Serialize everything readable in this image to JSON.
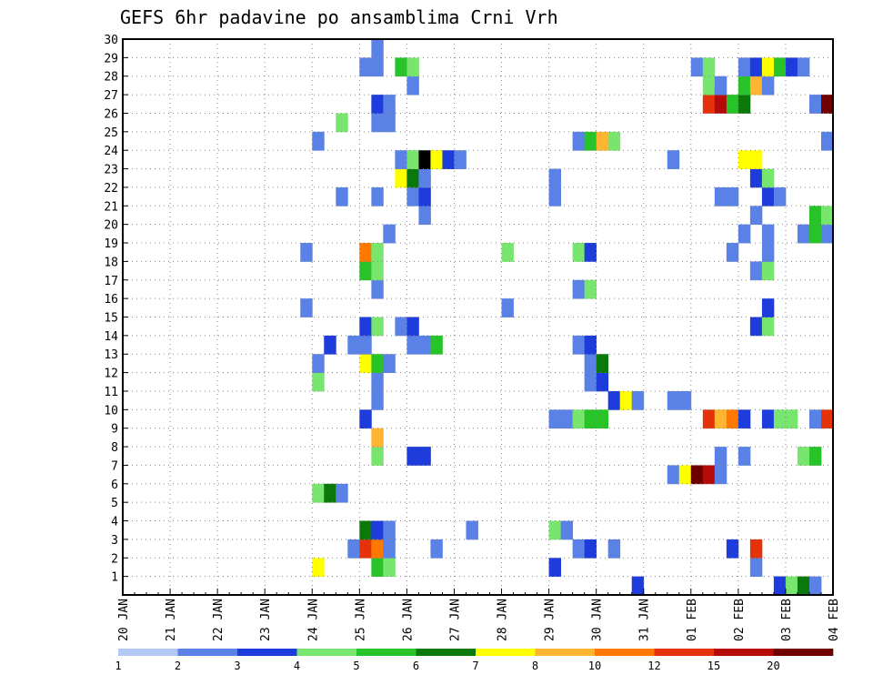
{
  "chart_data": {
    "type": "heatmap",
    "title": "GEFS 6hr padavine po ansamblima Crni Vrh",
    "xlabel": "",
    "ylabel": "",
    "x_tick_labels": [
      "20 JAN",
      "21 JAN",
      "22 JAN",
      "23 JAN",
      "24 JAN",
      "25 JAN",
      "26 JAN",
      "27 JAN",
      "28 JAN",
      "29 JAN",
      "30 JAN",
      "31 JAN",
      "01 FEB",
      "02 FEB",
      "03 FEB",
      "04 FEB"
    ],
    "y_tick_labels": [
      "1",
      "2",
      "3",
      "4",
      "5",
      "6",
      "7",
      "8",
      "9",
      "10",
      "11",
      "12",
      "13",
      "14",
      "15",
      "16",
      "17",
      "18",
      "19",
      "20",
      "21",
      "22",
      "23",
      "24",
      "25",
      "26",
      "27",
      "28",
      "29",
      "30"
    ],
    "step_hours": 6,
    "x_range": [
      "20 JAN",
      "04 FEB"
    ],
    "y_range": [
      0,
      30
    ],
    "grid": true,
    "color_scale": {
      "levels": [
        "1",
        "2",
        "3",
        "4",
        "5",
        "6",
        "7",
        "8",
        "10",
        "12",
        "15",
        "20"
      ],
      "colors": [
        "#b4c8f5",
        "#5a82e6",
        "#1e3cdc",
        "#78e66e",
        "#28c328",
        "#0a780a",
        "#ffff00",
        "#ffb432",
        "#ff7800",
        "#e6320a",
        "#b40a0a",
        "#6e0000"
      ]
    },
    "cells": [
      [
        10.75,
        0,
        2
      ],
      [
        13.75,
        0,
        1
      ],
      [
        13.75,
        0,
        2
      ],
      [
        14,
        0,
        3
      ],
      [
        14.25,
        0,
        5
      ],
      [
        14.5,
        0,
        1
      ],
      [
        4,
        1,
        6
      ],
      [
        5.25,
        1,
        4
      ],
      [
        5.5,
        1,
        3
      ],
      [
        9,
        1,
        2
      ],
      [
        13.25,
        1,
        1
      ],
      [
        4.75,
        2,
        1
      ],
      [
        5,
        2,
        9
      ],
      [
        5.25,
        2,
        8
      ],
      [
        5.5,
        2,
        1
      ],
      [
        6.5,
        2,
        1
      ],
      [
        9.5,
        2,
        1
      ],
      [
        9.75,
        2,
        2
      ],
      [
        10.25,
        2,
        1
      ],
      [
        12.75,
        2,
        2
      ],
      [
        13.25,
        2,
        9
      ],
      [
        5,
        3,
        5
      ],
      [
        5.25,
        3,
        2
      ],
      [
        5.5,
        3,
        1
      ],
      [
        7.25,
        3,
        1
      ],
      [
        9,
        3,
        3
      ],
      [
        9.25,
        3,
        1
      ],
      [
        4,
        5,
        3
      ],
      [
        4.25,
        5,
        5
      ],
      [
        4.5,
        5,
        1
      ],
      [
        15,
        5,
        5
      ],
      [
        15.25,
        5,
        6
      ],
      [
        11.5,
        6,
        1
      ],
      [
        11.75,
        6,
        6
      ],
      [
        12,
        6,
        11
      ],
      [
        12.25,
        6,
        10
      ],
      [
        12.5,
        6,
        1
      ],
      [
        5.25,
        7,
        3
      ],
      [
        6,
        7,
        2
      ],
      [
        6.25,
        7,
        2
      ],
      [
        12.5,
        7,
        1
      ],
      [
        13,
        7,
        1
      ],
      [
        14.25,
        7,
        3
      ],
      [
        14.5,
        7,
        4
      ],
      [
        5.25,
        8,
        7
      ],
      [
        5,
        9,
        2
      ],
      [
        9,
        9,
        1
      ],
      [
        9.25,
        9,
        1
      ],
      [
        9.5,
        9,
        3
      ],
      [
        9.75,
        9,
        4
      ],
      [
        10,
        9,
        4
      ],
      [
        12.25,
        9,
        9
      ],
      [
        12.5,
        9,
        7
      ],
      [
        12.75,
        9,
        8
      ],
      [
        13,
        9,
        2
      ],
      [
        13.5,
        9,
        2
      ],
      [
        13.75,
        9,
        3
      ],
      [
        14,
        9,
        3
      ],
      [
        14.5,
        9,
        1
      ],
      [
        14.75,
        9,
        9
      ],
      [
        15,
        9,
        6
      ],
      [
        5.25,
        10,
        1
      ],
      [
        10.25,
        10,
        2
      ],
      [
        10.5,
        10,
        6
      ],
      [
        10.75,
        10,
        1
      ],
      [
        11.5,
        10,
        1
      ],
      [
        11.75,
        10,
        1
      ],
      [
        4,
        11,
        3
      ],
      [
        5.25,
        11,
        1
      ],
      [
        9.75,
        11,
        1
      ],
      [
        10,
        11,
        2
      ],
      [
        4,
        12,
        1
      ],
      [
        5,
        12,
        6
      ],
      [
        5.25,
        12,
        4
      ],
      [
        5.5,
        12,
        1
      ],
      [
        9.75,
        12,
        1
      ],
      [
        10,
        12,
        5
      ],
      [
        4.25,
        13,
        2
      ],
      [
        4.75,
        13,
        1
      ],
      [
        5,
        13,
        1
      ],
      [
        6,
        13,
        1
      ],
      [
        6.25,
        13,
        1
      ],
      [
        6.5,
        13,
        4
      ],
      [
        9.5,
        13,
        1
      ],
      [
        9.75,
        13,
        2
      ],
      [
        5,
        14,
        2
      ],
      [
        5.25,
        14,
        3
      ],
      [
        5.75,
        14,
        1
      ],
      [
        6,
        14,
        2
      ],
      [
        13.25,
        14,
        2
      ],
      [
        13.5,
        14,
        3
      ],
      [
        15,
        14,
        1
      ],
      [
        3.75,
        15,
        1
      ],
      [
        8,
        15,
        1
      ],
      [
        13.5,
        15,
        2
      ],
      [
        5.25,
        16,
        1
      ],
      [
        9.5,
        16,
        1
      ],
      [
        9.75,
        16,
        3
      ],
      [
        5,
        17,
        4
      ],
      [
        5.25,
        17,
        3
      ],
      [
        13.25,
        17,
        1
      ],
      [
        13.5,
        17,
        3
      ],
      [
        5,
        18,
        8
      ],
      [
        5.25,
        18,
        3
      ],
      [
        3.75,
        18,
        1
      ],
      [
        8,
        18,
        3
      ],
      [
        9.5,
        18,
        3
      ],
      [
        9.75,
        18,
        2
      ],
      [
        12.75,
        18,
        1
      ],
      [
        13.5,
        18,
        1
      ],
      [
        5.5,
        19,
        1
      ],
      [
        13,
        19,
        1
      ],
      [
        13.5,
        19,
        1
      ],
      [
        14.25,
        19,
        1
      ],
      [
        14.5,
        19,
        4
      ],
      [
        14.75,
        19,
        1
      ],
      [
        6.25,
        20,
        1
      ],
      [
        13.25,
        20,
        1
      ],
      [
        14.5,
        20,
        4
      ],
      [
        14.75,
        20,
        3
      ],
      [
        4.5,
        21,
        1
      ],
      [
        5.25,
        21,
        1
      ],
      [
        6,
        21,
        1
      ],
      [
        6.25,
        21,
        2
      ],
      [
        9,
        21,
        1
      ],
      [
        12.5,
        21,
        1
      ],
      [
        12.75,
        21,
        1
      ],
      [
        13.5,
        21,
        2
      ],
      [
        13.75,
        21,
        1
      ],
      [
        15,
        21,
        4
      ],
      [
        5.75,
        22,
        6
      ],
      [
        6,
        22,
        5
      ],
      [
        6.25,
        22,
        1
      ],
      [
        9,
        22,
        1
      ],
      [
        13.25,
        22,
        2
      ],
      [
        13.5,
        22,
        3
      ],
      [
        5.75,
        23,
        1
      ],
      [
        6,
        23,
        3
      ],
      [
        6.25,
        23,
        12
      ],
      [
        6.5,
        23,
        6
      ],
      [
        6.75,
        23,
        2
      ],
      [
        7,
        23,
        1
      ],
      [
        11.5,
        23,
        1
      ],
      [
        13,
        23,
        6
      ],
      [
        13.25,
        23,
        6
      ],
      [
        4,
        24,
        1
      ],
      [
        9.5,
        24,
        1
      ],
      [
        9.75,
        24,
        4
      ],
      [
        10,
        24,
        7
      ],
      [
        10.25,
        24,
        3
      ],
      [
        14.75,
        24,
        1
      ],
      [
        4.5,
        25,
        3
      ],
      [
        5.25,
        25,
        1
      ],
      [
        5.5,
        25,
        1
      ],
      [
        5.25,
        26,
        2
      ],
      [
        5.5,
        26,
        1
      ],
      [
        12.25,
        26,
        9
      ],
      [
        12.5,
        26,
        10
      ],
      [
        12.75,
        26,
        4
      ],
      [
        13,
        26,
        5
      ],
      [
        14.5,
        26,
        1
      ],
      [
        14.75,
        26,
        11
      ],
      [
        6,
        27,
        1
      ],
      [
        12.25,
        27,
        3
      ],
      [
        12.5,
        27,
        1
      ],
      [
        13,
        27,
        4
      ],
      [
        13.25,
        27,
        7
      ],
      [
        13.5,
        27,
        1
      ],
      [
        5,
        28,
        1
      ],
      [
        5.25,
        28,
        1
      ],
      [
        5.75,
        28,
        4
      ],
      [
        6,
        28,
        3
      ],
      [
        12,
        28,
        1
      ],
      [
        12.25,
        28,
        3
      ],
      [
        13,
        28,
        1
      ],
      [
        13.25,
        28,
        2
      ],
      [
        13.5,
        28,
        6
      ],
      [
        13.75,
        28,
        4
      ],
      [
        14,
        28,
        2
      ],
      [
        14.25,
        28,
        1
      ],
      [
        5.25,
        29,
        1
      ]
    ]
  }
}
